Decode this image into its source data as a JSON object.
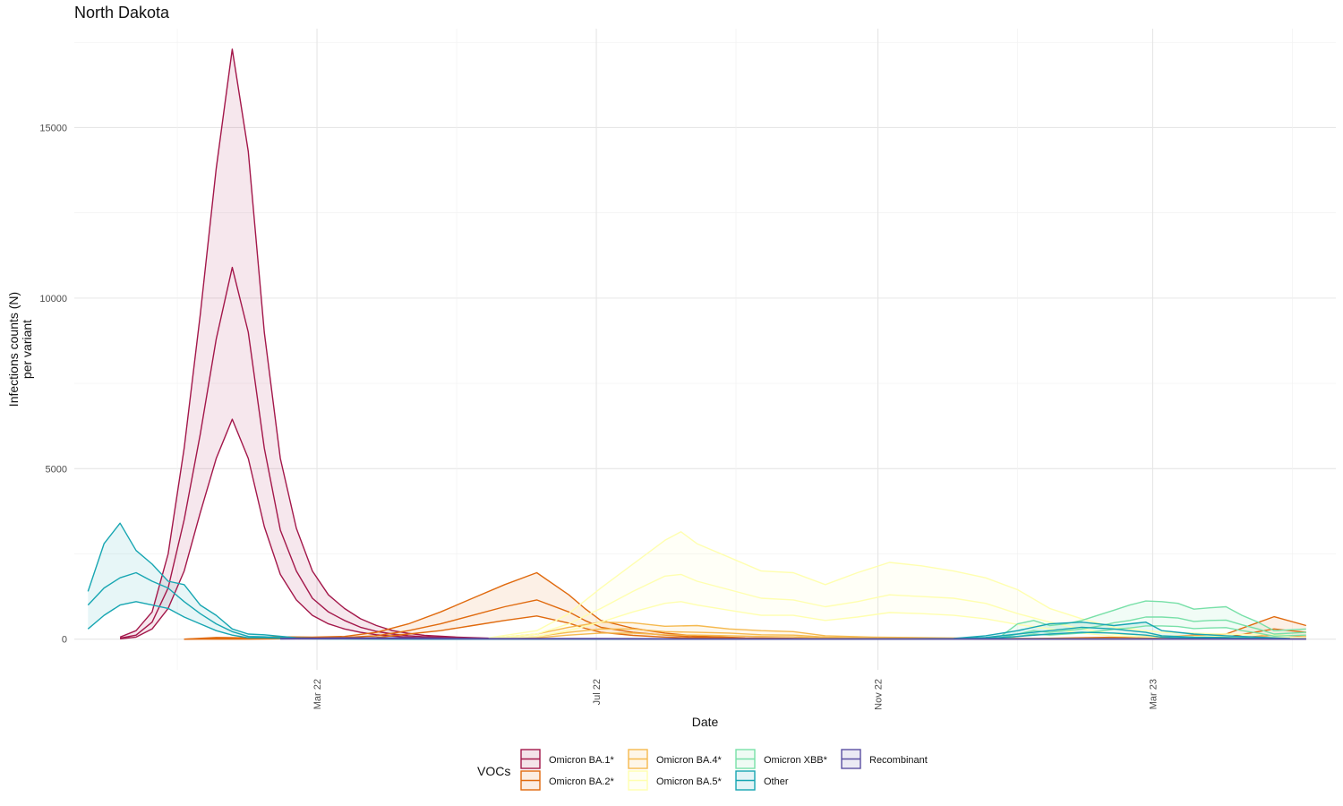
{
  "chart_data": {
    "type": "line",
    "title": "North Dakota",
    "xlabel": "Date",
    "ylabel_lines": [
      "Infections counts (N)",
      "per variant"
    ],
    "x_ticks": [
      "Mar 22",
      "Jul 22",
      "Nov 22",
      "Mar 23"
    ],
    "x_tick_dates": [
      "2022-03-01",
      "2022-07-01",
      "2022-11-01",
      "2023-03-01"
    ],
    "xlim": [
      "2021-11-15",
      "2023-05-20"
    ],
    "y_ticks": [
      0,
      5000,
      10000,
      15000
    ],
    "ylim": [
      -900,
      17900
    ],
    "grid": true,
    "legend_title": "VOCs",
    "legend_position": "bottom",
    "series": [
      {
        "name": "Omicron BA.1*",
        "color": "#A3174A",
        "dates": [
          "2021-12-05",
          "2021-12-12",
          "2021-12-19",
          "2021-12-26",
          "2022-01-02",
          "2022-01-09",
          "2022-01-16",
          "2022-01-23",
          "2022-01-30",
          "2022-02-06",
          "2022-02-13",
          "2022-02-20",
          "2022-02-27",
          "2022-03-06",
          "2022-03-13",
          "2022-03-20",
          "2022-03-27",
          "2022-04-03",
          "2022-04-10",
          "2022-04-17",
          "2022-05-01",
          "2022-05-15",
          "2022-06-05",
          "2022-07-03",
          "2022-08-07",
          "2022-09-04",
          "2022-10-02"
        ],
        "mid": [
          30,
          120,
          500,
          1500,
          3500,
          6000,
          8800,
          10900,
          9000,
          5600,
          3200,
          2000,
          1200,
          800,
          550,
          350,
          230,
          150,
          100,
          70,
          40,
          20,
          10,
          5,
          5,
          0,
          0
        ],
        "lo": [
          10,
          60,
          300,
          900,
          2000,
          3700,
          5300,
          6450,
          5300,
          3300,
          1900,
          1150,
          700,
          450,
          300,
          200,
          130,
          90,
          60,
          40,
          20,
          10,
          5,
          0,
          0,
          0,
          0
        ],
        "hi": [
          60,
          250,
          800,
          2500,
          5600,
          9500,
          13800,
          17300,
          14300,
          9000,
          5300,
          3250,
          2000,
          1300,
          900,
          600,
          400,
          250,
          170,
          110,
          60,
          30,
          15,
          10,
          10,
          5,
          0
        ]
      },
      {
        "name": "Omicron BA.2*",
        "color": "#E06A0E",
        "dates": [
          "2022-01-02",
          "2022-01-16",
          "2022-01-30",
          "2022-02-13",
          "2022-02-27",
          "2022-03-13",
          "2022-03-27",
          "2022-04-10",
          "2022-04-24",
          "2022-05-08",
          "2022-05-22",
          "2022-06-05",
          "2022-06-19",
          "2022-06-26",
          "2022-07-03",
          "2022-07-17",
          "2022-07-31",
          "2022-08-14",
          "2022-09-04",
          "2022-10-02",
          "2022-11-06",
          "2022-12-04",
          "2023-01-08",
          "2023-02-05",
          "2023-03-05",
          "2023-04-02",
          "2023-04-23",
          "2023-05-07"
        ],
        "mid": [
          0,
          20,
          20,
          40,
          40,
          50,
          100,
          250,
          450,
          700,
          950,
          1150,
          800,
          550,
          350,
          200,
          120,
          60,
          20,
          10,
          10,
          10,
          10,
          20,
          30,
          60,
          300,
          200
        ],
        "lo": [
          0,
          0,
          0,
          10,
          20,
          20,
          50,
          150,
          250,
          400,
          550,
          680,
          470,
          320,
          200,
          110,
          60,
          30,
          10,
          5,
          5,
          5,
          0,
          5,
          10,
          20,
          120,
          80
        ],
        "hi": [
          0,
          50,
          40,
          70,
          60,
          80,
          200,
          450,
          800,
          1200,
          1600,
          1950,
          1300,
          900,
          550,
          320,
          180,
          90,
          40,
          20,
          20,
          20,
          20,
          50,
          80,
          150,
          660,
          400
        ]
      },
      {
        "name": "Omicron BA.4*",
        "color": "#F5B94E",
        "dates": [
          "2022-05-15",
          "2022-06-05",
          "2022-06-19",
          "2022-07-03",
          "2022-07-17",
          "2022-07-31",
          "2022-08-14",
          "2022-08-28",
          "2022-09-11",
          "2022-09-25",
          "2022-10-09",
          "2022-10-30",
          "2022-11-27",
          "2022-12-25",
          "2023-01-22",
          "2023-02-19",
          "2023-03-19",
          "2023-04-16",
          "2023-05-07"
        ],
        "mid": [
          10,
          80,
          200,
          300,
          300,
          220,
          200,
          180,
          130,
          120,
          60,
          30,
          20,
          10,
          10,
          10,
          10,
          10,
          10
        ],
        "lo": [
          5,
          40,
          120,
          180,
          180,
          130,
          120,
          100,
          80,
          70,
          30,
          15,
          10,
          5,
          5,
          5,
          5,
          5,
          5
        ],
        "hi": [
          20,
          150,
          350,
          500,
          480,
          380,
          400,
          300,
          250,
          220,
          100,
          60,
          40,
          20,
          20,
          20,
          20,
          20,
          20
        ]
      },
      {
        "name": "Omicron BA.5*",
        "color": "#FFFFB0",
        "dates": [
          "2022-05-15",
          "2022-06-05",
          "2022-06-19",
          "2022-07-03",
          "2022-07-17",
          "2022-07-31",
          "2022-08-07",
          "2022-08-14",
          "2022-08-28",
          "2022-09-11",
          "2022-09-25",
          "2022-10-09",
          "2022-10-23",
          "2022-11-06",
          "2022-11-20",
          "2022-12-04",
          "2022-12-18",
          "2023-01-01",
          "2023-01-15",
          "2023-01-29",
          "2023-02-12",
          "2023-03-05",
          "2023-04-02",
          "2023-05-07"
        ],
        "mid": [
          20,
          150,
          450,
          900,
          1400,
          1850,
          1900,
          1700,
          1450,
          1200,
          1150,
          950,
          1100,
          1300,
          1250,
          1200,
          1050,
          750,
          500,
          300,
          150,
          100,
          80,
          50
        ],
        "lo": [
          10,
          80,
          250,
          500,
          800,
          1050,
          1100,
          1000,
          850,
          700,
          700,
          550,
          650,
          780,
          750,
          700,
          600,
          430,
          300,
          180,
          90,
          60,
          40,
          30
        ],
        "hi": [
          40,
          250,
          750,
          1500,
          2200,
          2900,
          3150,
          2800,
          2400,
          2000,
          1950,
          1600,
          1950,
          2250,
          2150,
          2000,
          1800,
          1450,
          900,
          600,
          350,
          200,
          150,
          100
        ]
      },
      {
        "name": "Omicron XBB*",
        "color": "#78E0A8",
        "dates": [
          "2022-12-04",
          "2022-12-18",
          "2022-12-25",
          "2023-01-01",
          "2023-01-08",
          "2023-01-15",
          "2023-01-22",
          "2023-01-29",
          "2023-02-05",
          "2023-02-12",
          "2023-02-19",
          "2023-02-26",
          "2023-03-05",
          "2023-03-12",
          "2023-03-19",
          "2023-03-26",
          "2023-04-02",
          "2023-04-09",
          "2023-04-16",
          "2023-04-23",
          "2023-05-07"
        ],
        "mid": [
          10,
          20,
          50,
          150,
          250,
          200,
          250,
          300,
          380,
          480,
          550,
          650,
          650,
          620,
          520,
          550,
          560,
          420,
          300,
          150,
          200
        ],
        "lo": [
          5,
          10,
          20,
          80,
          150,
          120,
          150,
          180,
          230,
          290,
          330,
          390,
          390,
          370,
          310,
          330,
          340,
          250,
          180,
          90,
          120
        ],
        "hi": [
          20,
          40,
          100,
          450,
          550,
          400,
          450,
          550,
          700,
          850,
          1000,
          1120,
          1100,
          1050,
          880,
          920,
          950,
          700,
          500,
          250,
          300
        ]
      },
      {
        "name": "Other",
        "color": "#17A6B2",
        "dates": [
          "2021-11-21",
          "2021-11-28",
          "2021-12-05",
          "2021-12-12",
          "2021-12-19",
          "2021-12-26",
          "2022-01-02",
          "2022-01-09",
          "2022-01-16",
          "2022-01-23",
          "2022-01-30",
          "2022-02-06",
          "2022-02-20",
          "2022-03-06",
          "2022-04-03",
          "2022-05-01",
          "2022-06-05",
          "2022-08-07",
          "2022-10-02",
          "2022-12-04",
          "2022-12-18",
          "2023-01-01",
          "2023-01-15",
          "2023-01-29",
          "2023-02-12",
          "2023-02-26",
          "2023-03-05",
          "2023-03-19",
          "2023-04-02",
          "2023-04-16",
          "2023-04-30"
        ],
        "mid": [
          1000,
          1500,
          1800,
          1950,
          1700,
          1500,
          1100,
          750,
          450,
          220,
          80,
          70,
          20,
          10,
          5,
          0,
          0,
          0,
          0,
          10,
          50,
          150,
          250,
          350,
          300,
          200,
          100,
          60,
          50,
          30,
          10
        ],
        "lo": [
          300,
          700,
          1000,
          1100,
          1000,
          900,
          650,
          450,
          250,
          120,
          40,
          40,
          10,
          5,
          0,
          0,
          0,
          0,
          0,
          0,
          20,
          80,
          150,
          200,
          180,
          120,
          60,
          30,
          20,
          10,
          5
        ],
        "hi": [
          1400,
          2800,
          3400,
          2600,
          2200,
          1700,
          1600,
          1000,
          700,
          300,
          150,
          130,
          40,
          20,
          10,
          5,
          0,
          0,
          0,
          20,
          100,
          250,
          450,
          500,
          400,
          500,
          250,
          150,
          100,
          60,
          20
        ]
      },
      {
        "name": "Recombinant",
        "color": "#5A4FA2",
        "dates": [
          "2022-02-13",
          "2022-03-13",
          "2022-04-10",
          "2022-05-15",
          "2022-07-03",
          "2022-09-04",
          "2022-11-06",
          "2023-01-08",
          "2023-03-05",
          "2023-05-07"
        ],
        "mid": [
          10,
          20,
          20,
          10,
          10,
          5,
          5,
          5,
          5,
          5
        ],
        "lo": [
          5,
          10,
          10,
          5,
          5,
          0,
          0,
          0,
          0,
          0
        ],
        "hi": [
          20,
          40,
          40,
          20,
          20,
          10,
          10,
          10,
          10,
          10
        ]
      }
    ]
  }
}
